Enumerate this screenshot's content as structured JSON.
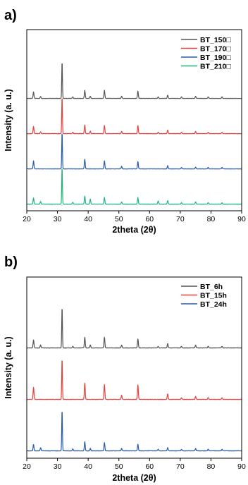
{
  "chart_data": [
    {
      "type": "line",
      "panel_label": "a)",
      "xlabel": "2theta (2θ)",
      "ylabel": "Intensity (a. u.)",
      "xlim": [
        20,
        90
      ],
      "xticks": [
        20,
        30,
        40,
        50,
        60,
        70,
        80,
        90
      ],
      "yticks": [],
      "grid": false,
      "legend_position": "top-right",
      "series": [
        {
          "name": "BT_150□",
          "color": "#555555",
          "offset": 3
        },
        {
          "name": "BT_170□",
          "color": "#e8413c",
          "offset": 2
        },
        {
          "name": "BT_190□",
          "color": "#2a5caa",
          "offset": 1
        },
        {
          "name": "BT_210□",
          "color": "#1fb47a",
          "offset": 0
        }
      ],
      "peaks": [
        {
          "x": [
            22.2,
            24.5,
            31.5,
            35.0,
            38.9,
            40.7,
            45.3,
            50.9,
            56.2,
            62.8,
            65.9,
            70.4,
            75.0,
            79.1,
            83.6
          ],
          "y": [
            18,
            5,
            100,
            4,
            22,
            6,
            22,
            6,
            20,
            4,
            9,
            4,
            6,
            4,
            4
          ]
        },
        {
          "x": [
            22.2,
            24.5,
            31.5,
            35.0,
            38.9,
            40.7,
            45.3,
            50.9,
            56.2,
            62.8,
            65.9,
            70.4,
            75.0,
            79.1,
            83.6
          ],
          "y": [
            20,
            5,
            100,
            4,
            24,
            7,
            22,
            6,
            22,
            4,
            10,
            4,
            6,
            4,
            4
          ]
        },
        {
          "x": [
            22.2,
            31.5,
            38.9,
            45.3,
            50.9,
            56.2,
            65.9,
            70.4,
            75.0,
            79.1,
            83.6
          ],
          "y": [
            22,
            100,
            26,
            22,
            7,
            20,
            9,
            4,
            5,
            4,
            4
          ]
        },
        {
          "x": [
            22.2,
            24.5,
            31.5,
            35.0,
            38.9,
            40.7,
            45.3,
            50.9,
            56.2,
            62.8,
            65.9,
            70.4,
            75.0,
            79.1,
            83.6
          ],
          "y": [
            17,
            7,
            100,
            5,
            22,
            14,
            18,
            6,
            18,
            9,
            10,
            4,
            6,
            4,
            4
          ]
        }
      ]
    },
    {
      "type": "line",
      "panel_label": "b)",
      "xlabel": "2theta (2θ)",
      "ylabel": "Intensity (a. u.)",
      "xlim": [
        20,
        90
      ],
      "xticks": [
        20,
        30,
        40,
        50,
        60,
        70,
        80,
        90
      ],
      "yticks": [],
      "grid": false,
      "legend_position": "top-right",
      "series": [
        {
          "name": "BT_6h",
          "color": "#555555",
          "offset": 2
        },
        {
          "name": "BT_15h",
          "color": "#e8413c",
          "offset": 1
        },
        {
          "name": "BT_24h",
          "color": "#2a5caa",
          "offset": 0
        }
      ],
      "peaks": [
        {
          "x": [
            22.2,
            24.5,
            31.5,
            35.0,
            38.9,
            40.7,
            45.3,
            50.9,
            56.2,
            62.8,
            65.9,
            70.4,
            75.0,
            79.1,
            83.6
          ],
          "y": [
            20,
            7,
            100,
            4,
            26,
            7,
            26,
            7,
            22,
            4,
            11,
            4,
            7,
            4,
            4
          ]
        },
        {
          "x": [
            22.2,
            31.5,
            38.9,
            45.3,
            50.9,
            56.2,
            65.9,
            70.4,
            75.0,
            79.1,
            83.6
          ],
          "y": [
            30,
            100,
            40,
            36,
            10,
            36,
            14,
            4,
            7,
            5,
            4
          ]
        },
        {
          "x": [
            22.2,
            24.5,
            31.5,
            35.0,
            38.9,
            40.7,
            45.3,
            50.9,
            56.2,
            62.8,
            65.9,
            70.4,
            75.0,
            79.1,
            83.6
          ],
          "y": [
            16,
            8,
            100,
            5,
            22,
            6,
            20,
            6,
            16,
            4,
            8,
            4,
            6,
            4,
            4
          ]
        }
      ]
    }
  ]
}
